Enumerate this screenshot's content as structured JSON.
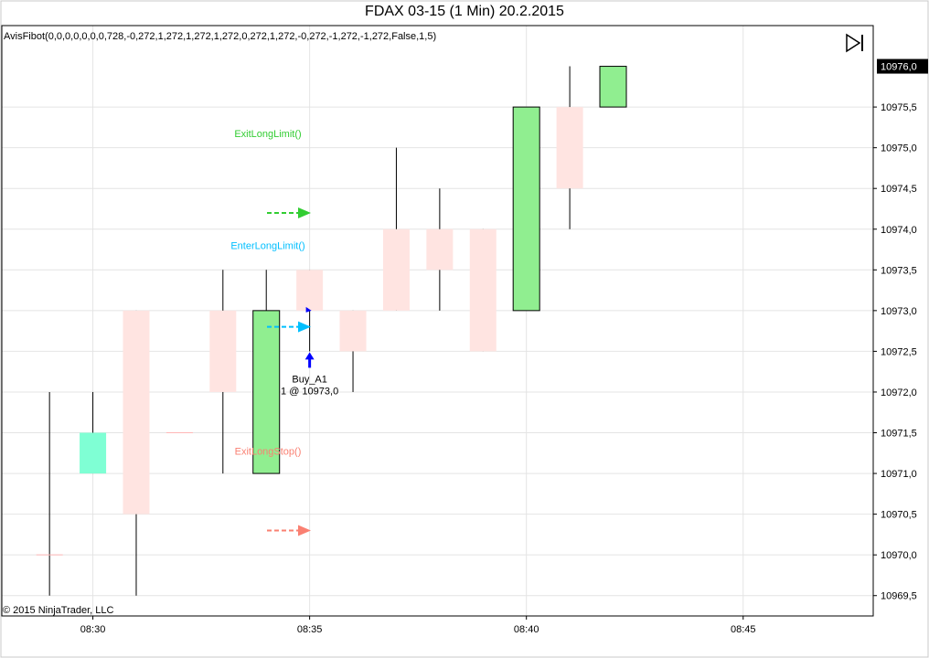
{
  "chart_title": "FDAX 03-15 (1 Min)  20.2.2015",
  "indicator_label": "AvisFibot(0,0,0,0,0,0,0,728,-0,272,1,272,1,272,1,272,0,272,1,272,-0,272,-1,272,-1,272,False,1,5)",
  "copyright": "© 2015 NinjaTrader, LLC",
  "last_price_label": "10976,0",
  "colors": {
    "up_candle": "#90ee90",
    "down_candle": "#ffe4e1",
    "aqua_candle": "#7fffd4",
    "exit_long_limit": "#32cd32",
    "enter_long_limit": "#00bfff",
    "exit_long_stop": "#fa8072",
    "buy_marker": "#0000ff",
    "grid": "#e4e4e4",
    "axis": "#000000"
  },
  "chart_data": {
    "type": "candlestick",
    "title": "FDAX 03-15 (1 Min)  20.2.2015",
    "ylim": [
      10969.25,
      10976.5
    ],
    "y_ticks": [
      "10969,5",
      "10970,0",
      "10970,5",
      "10971,0",
      "10971,5",
      "10972,0",
      "10972,5",
      "10973,0",
      "10973,5",
      "10974,0",
      "10974,5",
      "10975,0",
      "10975,5"
    ],
    "y_tick_values": [
      10969.5,
      10970.0,
      10970.5,
      10971.0,
      10971.5,
      10972.0,
      10972.5,
      10973.0,
      10973.5,
      10974.0,
      10974.5,
      10975.0,
      10975.5
    ],
    "x_ticks": [
      "08:30",
      "08:35",
      "08:40",
      "08:45"
    ],
    "x_tick_minutes": [
      30,
      35,
      40,
      45
    ],
    "x_range_minutes": [
      27.9,
      48.0
    ],
    "grid": true,
    "candles": [
      {
        "time": "08:29",
        "open": 10970.0,
        "high": 10972.0,
        "low": 10969.5,
        "close": 10970.0,
        "color": "down"
      },
      {
        "time": "08:30",
        "open": 10971.0,
        "high": 10972.0,
        "low": 10971.0,
        "close": 10971.5,
        "color": "aqua"
      },
      {
        "time": "08:31",
        "open": 10973.0,
        "high": 10973.0,
        "low": 10969.5,
        "close": 10970.5,
        "color": "down"
      },
      {
        "time": "08:32",
        "open": 10971.5,
        "high": 10971.5,
        "low": 10971.5,
        "close": 10971.5,
        "color": "down"
      },
      {
        "time": "08:33",
        "open": 10973.0,
        "high": 10973.5,
        "low": 10971.0,
        "close": 10972.0,
        "color": "down"
      },
      {
        "time": "08:34",
        "open": 10971.0,
        "high": 10973.5,
        "low": 10971.0,
        "close": 10973.0,
        "color": "up"
      },
      {
        "time": "08:35",
        "open": 10973.5,
        "high": 10973.5,
        "low": 10972.5,
        "close": 10973.0,
        "color": "down"
      },
      {
        "time": "08:36",
        "open": 10973.0,
        "high": 10973.0,
        "low": 10972.0,
        "close": 10972.5,
        "color": "down"
      },
      {
        "time": "08:37",
        "open": 10974.0,
        "high": 10975.0,
        "low": 10973.0,
        "close": 10973.0,
        "color": "down"
      },
      {
        "time": "08:38",
        "open": 10974.0,
        "high": 10974.5,
        "low": 10973.0,
        "close": 10973.5,
        "color": "down"
      },
      {
        "time": "08:39",
        "open": 10974.0,
        "high": 10974.0,
        "low": 10972.5,
        "close": 10972.5,
        "color": "down"
      },
      {
        "time": "08:40",
        "open": 10973.0,
        "high": 10975.5,
        "low": 10973.0,
        "close": 10975.5,
        "color": "up"
      },
      {
        "time": "08:41",
        "open": 10975.5,
        "high": 10976.0,
        "low": 10974.0,
        "close": 10974.5,
        "color": "down"
      },
      {
        "time": "08:42",
        "open": 10975.5,
        "high": 10976.0,
        "low": 10975.5,
        "close": 10976.0,
        "color": "up"
      }
    ],
    "annotations": [
      {
        "label": "ExitLongLimit()",
        "price": 10974.2,
        "color_key": "exit_long_limit"
      },
      {
        "label": "EnterLongLimit()",
        "price": 10972.8,
        "color_key": "enter_long_limit"
      },
      {
        "label": "ExitLongStop()",
        "price": 10970.3,
        "color_key": "exit_long_stop"
      }
    ],
    "execution": {
      "label": "Buy_A1",
      "detail": "1 @ 10973,0",
      "time": "08:35",
      "price": 10973.0
    }
  }
}
